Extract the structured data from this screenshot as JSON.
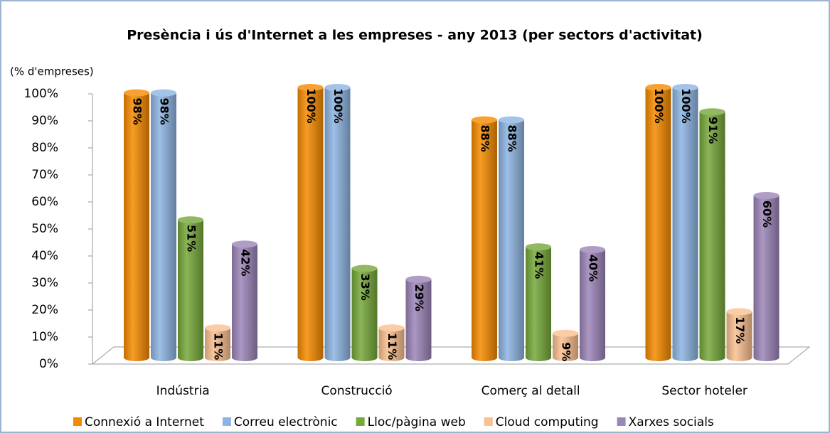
{
  "chart_data": {
    "type": "bar",
    "title": "Presència i ús d'Internet a les empreses - any 2013 (per sectors d'activitat)",
    "ylabel": "(% d'empreses)",
    "categories": [
      "Indústria",
      "Construcció",
      "Comerç al detall",
      "Sector hoteler"
    ],
    "series": [
      {
        "name": "Connexió a Internet",
        "color": "#f58a00",
        "values": [
          98,
          100,
          88,
          100
        ],
        "value_labels": [
          "98%",
          "100%",
          "88%",
          "100%"
        ]
      },
      {
        "name": "Correu electrònic",
        "color": "#8db4e2",
        "values": [
          98,
          100,
          88,
          100
        ],
        "value_labels": [
          "98%",
          "100%",
          "88%",
          "100%"
        ]
      },
      {
        "name": "Lloc/pàgina web",
        "color": "#77a83a",
        "values": [
          51,
          33,
          41,
          91
        ],
        "value_labels": [
          "51%",
          "33%",
          "41%",
          "91%"
        ]
      },
      {
        "name": "Cloud computing",
        "color": "#fac08f",
        "values": [
          11,
          11,
          9,
          17
        ],
        "value_labels": [
          "11%",
          "11%",
          "9%",
          "17%"
        ]
      },
      {
        "name": "Xarxes socials",
        "color": "#9c85b8",
        "values": [
          42,
          29,
          40,
          60
        ],
        "value_labels": [
          "42%",
          "29%",
          "40%",
          "60%"
        ]
      }
    ],
    "ylim": [
      0,
      100
    ],
    "yticks": [
      {
        "value": 0,
        "label": "0%"
      },
      {
        "value": 10,
        "label": "10%"
      },
      {
        "value": 20,
        "label": "20%"
      },
      {
        "value": 30,
        "label": "30%"
      },
      {
        "value": 40,
        "label": "40%"
      },
      {
        "value": 50,
        "label": "50%"
      },
      {
        "value": 60,
        "label": "60%"
      },
      {
        "value": 70,
        "label": "70%"
      },
      {
        "value": 80,
        "label": "80%"
      },
      {
        "value": 90,
        "label": "90%"
      },
      {
        "value": 100,
        "label": "100%"
      }
    ],
    "legend": "bottom"
  }
}
